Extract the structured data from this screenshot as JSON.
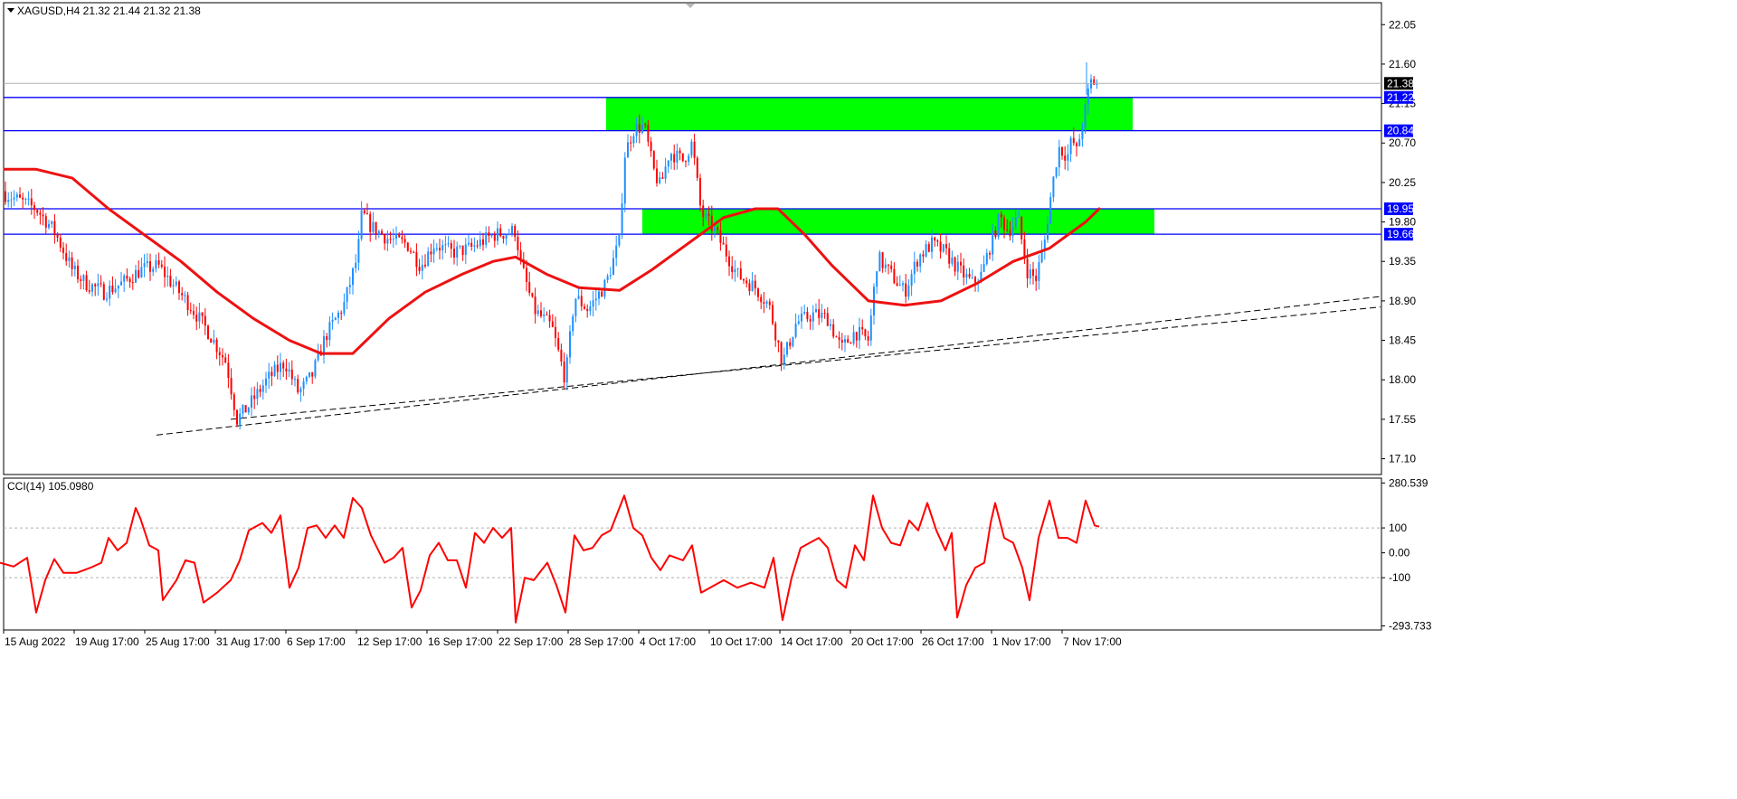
{
  "header": {
    "title": "XAGUSD,H4  21.32 21.44 21.32 21.38"
  },
  "indicator": {
    "title": "CCI(14) 105.0980"
  },
  "colors": {
    "candle_up": "#1e90ff",
    "candle_down": "#ff0000",
    "ma": "#ee1111",
    "cci": "#ff0000",
    "level_line": "#0000ff",
    "zone": "#00ff00",
    "trend": "#000000",
    "tag_bg": "#0000ff",
    "price_tag_bg": "#000000"
  },
  "chart_data": [
    {
      "type": "candlestick",
      "symbol": "XAGUSD",
      "timeframe": "H4",
      "ylim": [
        16.92,
        22.3
      ],
      "y_ticks": [
        "22.05",
        "21.60",
        "21.15",
        "20.70",
        "20.25",
        "19.80",
        "19.35",
        "18.90",
        "18.45",
        "18.00",
        "17.55",
        "17.10"
      ],
      "x_ticks": [
        "15 Aug 2022",
        "19 Aug 17:00",
        "25 Aug 17:00",
        "31 Aug 17:00",
        "6 Sep 17:00",
        "12 Sep 17:00",
        "16 Sep 17:00",
        "22 Sep 17:00",
        "28 Sep 17:00",
        "4 Oct 17:00",
        "10 Oct 17:00",
        "14 Oct 17:00",
        "20 Oct 17:00",
        "26 Oct 17:00",
        "1 Nov 17:00",
        "7 Nov 17:00"
      ],
      "current_price": "21.38",
      "close_path": [
        [
          0,
          20.15
        ],
        [
          20,
          20.05
        ],
        [
          40,
          19.95
        ],
        [
          60,
          19.7
        ],
        [
          80,
          19.25
        ],
        [
          95,
          19.1
        ],
        [
          115,
          19.0
        ],
        [
          135,
          19.1
        ],
        [
          155,
          19.25
        ],
        [
          175,
          19.3
        ],
        [
          190,
          19.1
        ],
        [
          210,
          18.85
        ],
        [
          230,
          18.55
        ],
        [
          250,
          18.2
        ],
        [
          262,
          17.55
        ],
        [
          275,
          17.7
        ],
        [
          295,
          18.0
        ],
        [
          315,
          18.2
        ],
        [
          330,
          17.85
        ],
        [
          345,
          18.05
        ],
        [
          360,
          18.5
        ],
        [
          380,
          18.85
        ],
        [
          395,
          19.4
        ],
        [
          400,
          19.9
        ],
        [
          410,
          19.75
        ],
        [
          430,
          19.6
        ],
        [
          450,
          19.55
        ],
        [
          465,
          19.3
        ],
        [
          480,
          19.55
        ],
        [
          500,
          19.45
        ],
        [
          520,
          19.5
        ],
        [
          545,
          19.65
        ],
        [
          570,
          19.7
        ],
        [
          575,
          19.35
        ],
        [
          590,
          18.8
        ],
        [
          610,
          18.6
        ],
        [
          625,
          18.0
        ],
        [
          635,
          18.95
        ],
        [
          650,
          18.8
        ],
        [
          670,
          19.1
        ],
        [
          685,
          19.6
        ],
        [
          690,
          20.55
        ],
        [
          700,
          20.85
        ],
        [
          712,
          20.9
        ],
        [
          722,
          20.4
        ],
        [
          730,
          20.2
        ],
        [
          740,
          20.6
        ],
        [
          755,
          20.5
        ],
        [
          765,
          20.7
        ],
        [
          775,
          19.9
        ],
        [
          790,
          19.7
        ],
        [
          800,
          19.5
        ],
        [
          815,
          19.2
        ],
        [
          835,
          19.05
        ],
        [
          850,
          18.85
        ],
        [
          865,
          18.2
        ],
        [
          880,
          18.65
        ],
        [
          900,
          18.75
        ],
        [
          915,
          18.7
        ],
        [
          930,
          18.35
        ],
        [
          945,
          18.55
        ],
        [
          960,
          18.45
        ],
        [
          970,
          19.4
        ],
        [
          985,
          19.2
        ],
        [
          1000,
          19.0
        ],
        [
          1015,
          19.4
        ],
        [
          1030,
          19.55
        ],
        [
          1045,
          19.45
        ],
        [
          1060,
          19.25
        ],
        [
          1075,
          19.1
        ],
        [
          1085,
          19.2
        ],
        [
          1095,
          19.55
        ],
        [
          1105,
          19.85
        ],
        [
          1115,
          19.7
        ],
        [
          1125,
          19.85
        ],
        [
          1135,
          19.25
        ],
        [
          1145,
          19.15
        ],
        [
          1155,
          19.6
        ],
        [
          1160,
          20.0
        ],
        [
          1170,
          20.65
        ],
        [
          1180,
          20.55
        ],
        [
          1185,
          20.75
        ],
        [
          1190,
          20.6
        ],
        [
          1200,
          21.1
        ],
        [
          1205,
          21.4
        ],
        [
          1215,
          21.38
        ]
      ],
      "ma_path": [
        [
          5,
          20.4
        ],
        [
          40,
          20.4
        ],
        [
          80,
          20.3
        ],
        [
          120,
          19.95
        ],
        [
          160,
          19.65
        ],
        [
          200,
          19.35
        ],
        [
          240,
          19.0
        ],
        [
          280,
          18.7
        ],
        [
          320,
          18.45
        ],
        [
          355,
          18.3
        ],
        [
          390,
          18.3
        ],
        [
          430,
          18.7
        ],
        [
          470,
          19.0
        ],
        [
          510,
          19.2
        ],
        [
          545,
          19.35
        ],
        [
          570,
          19.4
        ],
        [
          605,
          19.2
        ],
        [
          640,
          19.05
        ],
        [
          685,
          19.02
        ],
        [
          720,
          19.25
        ],
        [
          760,
          19.55
        ],
        [
          800,
          19.85
        ],
        [
          835,
          19.95
        ],
        [
          860,
          19.95
        ],
        [
          890,
          19.65
        ],
        [
          920,
          19.3
        ],
        [
          960,
          18.9
        ],
        [
          1000,
          18.85
        ],
        [
          1040,
          18.9
        ],
        [
          1080,
          19.1
        ],
        [
          1120,
          19.35
        ],
        [
          1160,
          19.5
        ],
        [
          1200,
          19.8
        ],
        [
          1215,
          19.95
        ]
      ],
      "trendlines": [
        {
          "from": [
            173,
            17.37
          ],
          "to": [
            1526,
            18.95
          ]
        },
        {
          "from": [
            255,
            17.55
          ],
          "to": [
            1526,
            18.83
          ]
        }
      ],
      "levels": [
        {
          "value": 21.22,
          "label": "21.22"
        },
        {
          "value": 20.84,
          "label": "20.84"
        },
        {
          "value": 19.95,
          "label": "19.95"
        },
        {
          "value": 19.66,
          "label": "19.66"
        }
      ],
      "zones": [
        {
          "x0": 670,
          "x1": 1252,
          "y0": 20.84,
          "y1": 21.22
        },
        {
          "x0": 710,
          "x1": 1276,
          "y0": 19.66,
          "y1": 19.95
        }
      ]
    },
    {
      "type": "line",
      "name": "CCI(14)",
      "value": "105.0980",
      "ylim": [
        -310,
        300
      ],
      "y_ticks": [
        {
          "value": 280.539,
          "label": "280.539"
        },
        {
          "value": 100,
          "label": "100"
        },
        {
          "value": 0,
          "label": "0.00"
        },
        {
          "value": -100,
          "label": "-100"
        },
        {
          "value": -293.733,
          "label": "-293.733"
        }
      ],
      "reference_levels": [
        100,
        -100
      ],
      "cci_path": [
        [
          0,
          -40
        ],
        [
          15,
          -55
        ],
        [
          30,
          -20
        ],
        [
          40,
          -240
        ],
        [
          50,
          -110
        ],
        [
          60,
          -25
        ],
        [
          70,
          -80
        ],
        [
          85,
          -80
        ],
        [
          100,
          -60
        ],
        [
          112,
          -40
        ],
        [
          120,
          60
        ],
        [
          130,
          10
        ],
        [
          140,
          40
        ],
        [
          150,
          180
        ],
        [
          155,
          140
        ],
        [
          165,
          30
        ],
        [
          175,
          10
        ],
        [
          180,
          -190
        ],
        [
          195,
          -110
        ],
        [
          205,
          -30
        ],
        [
          215,
          -40
        ],
        [
          225,
          -200
        ],
        [
          240,
          -160
        ],
        [
          255,
          -110
        ],
        [
          265,
          -30
        ],
        [
          275,
          90
        ],
        [
          290,
          120
        ],
        [
          300,
          80
        ],
        [
          310,
          150
        ],
        [
          320,
          -140
        ],
        [
          330,
          -60
        ],
        [
          340,
          100
        ],
        [
          350,
          110
        ],
        [
          360,
          60
        ],
        [
          370,
          110
        ],
        [
          380,
          60
        ],
        [
          390,
          220
        ],
        [
          400,
          180
        ],
        [
          410,
          70
        ],
        [
          425,
          -40
        ],
        [
          435,
          -20
        ],
        [
          445,
          20
        ],
        [
          455,
          -220
        ],
        [
          465,
          -150
        ],
        [
          475,
          -10
        ],
        [
          485,
          40
        ],
        [
          495,
          -30
        ],
        [
          505,
          -30
        ],
        [
          515,
          -140
        ],
        [
          525,
          80
        ],
        [
          535,
          40
        ],
        [
          545,
          100
        ],
        [
          555,
          60
        ],
        [
          565,
          100
        ],
        [
          570,
          -280
        ],
        [
          580,
          -100
        ],
        [
          590,
          -110
        ],
        [
          605,
          -40
        ],
        [
          615,
          -130
        ],
        [
          625,
          -240
        ],
        [
          635,
          70
        ],
        [
          645,
          10
        ],
        [
          655,
          20
        ],
        [
          665,
          70
        ],
        [
          675,
          90
        ],
        [
          690,
          230
        ],
        [
          700,
          100
        ],
        [
          710,
          70
        ],
        [
          720,
          -20
        ],
        [
          730,
          -70
        ],
        [
          740,
          -10
        ],
        [
          755,
          -30
        ],
        [
          765,
          30
        ],
        [
          775,
          -160
        ],
        [
          790,
          -130
        ],
        [
          800,
          -110
        ],
        [
          815,
          -140
        ],
        [
          830,
          -120
        ],
        [
          845,
          -140
        ],
        [
          855,
          -20
        ],
        [
          865,
          -270
        ],
        [
          875,
          -100
        ],
        [
          885,
          20
        ],
        [
          895,
          40
        ],
        [
          905,
          60
        ],
        [
          915,
          20
        ],
        [
          925,
          -110
        ],
        [
          935,
          -140
        ],
        [
          945,
          30
        ],
        [
          955,
          -30
        ],
        [
          965,
          230
        ],
        [
          975,
          100
        ],
        [
          985,
          40
        ],
        [
          995,
          30
        ],
        [
          1005,
          130
        ],
        [
          1015,
          90
        ],
        [
          1025,
          200
        ],
        [
          1035,
          90
        ],
        [
          1045,
          10
        ],
        [
          1052,
          80
        ],
        [
          1058,
          -260
        ],
        [
          1068,
          -130
        ],
        [
          1078,
          -60
        ],
        [
          1088,
          -40
        ],
        [
          1095,
          120
        ],
        [
          1100,
          200
        ],
        [
          1110,
          60
        ],
        [
          1120,
          40
        ],
        [
          1130,
          -60
        ],
        [
          1138,
          -190
        ],
        [
          1148,
          60
        ],
        [
          1160,
          210
        ],
        [
          1170,
          60
        ],
        [
          1180,
          60
        ],
        [
          1190,
          40
        ],
        [
          1200,
          210
        ],
        [
          1210,
          110
        ],
        [
          1215,
          105
        ]
      ]
    }
  ]
}
